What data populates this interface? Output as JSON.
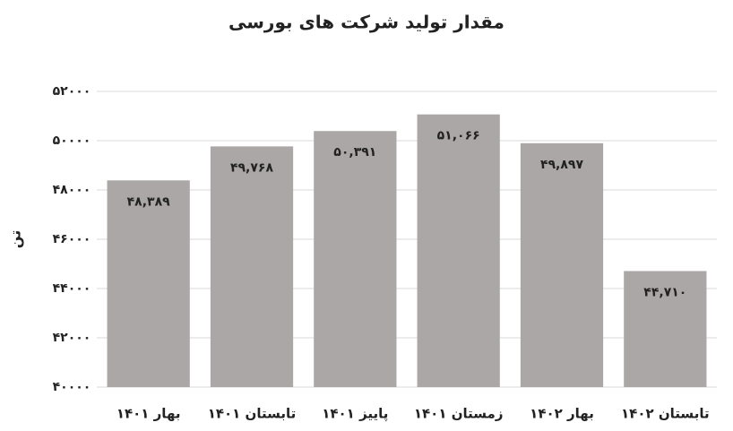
{
  "chart_data": {
    "type": "bar",
    "title": "مقدار تولید شرکت های بورسی",
    "ylabel": "تن",
    "categories": [
      "بهار ۱۴۰۱",
      "تابستان ۱۴۰۱",
      "پاییز ۱۴۰۱",
      "زمستان ۱۴۰۱",
      "بهار ۱۴۰۲",
      "تابستان ۱۴۰۲"
    ],
    "values": [
      48389,
      49768,
      50391,
      51066,
      49897,
      44710
    ],
    "value_labels": [
      "۴۸,۳۸۹",
      "۴۹,۷۶۸",
      "۵۰,۳۹۱",
      "۵۱,۰۶۶",
      "۴۹,۸۹۷",
      "۴۴,۷۱۰"
    ],
    "color": "#aba7a7",
    "ylim": [
      40000,
      52000
    ],
    "yticks": [
      {
        "value": 40000,
        "label": "۴۰۰۰۰"
      },
      {
        "value": 42000,
        "label": "۴۲۰۰۰"
      },
      {
        "value": 44000,
        "label": "۴۴۰۰۰"
      },
      {
        "value": 46000,
        "label": "۴۶۰۰۰"
      },
      {
        "value": 48000,
        "label": "۴۸۰۰۰"
      },
      {
        "value": 50000,
        "label": "۵۰۰۰۰"
      },
      {
        "value": 52000,
        "label": "۵۲۰۰۰"
      }
    ],
    "grid": true
  }
}
